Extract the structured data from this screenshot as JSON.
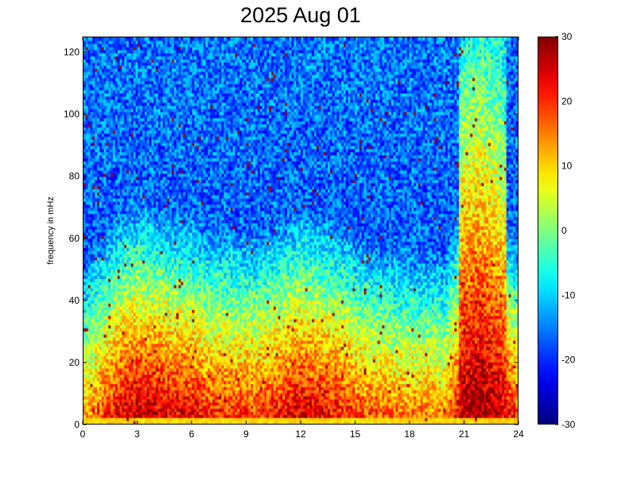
{
  "chart_data": {
    "type": "heatmap",
    "title": "2025 Aug 01",
    "ylabel": "frequency in mHz",
    "xlabel": "",
    "xlim": [
      0,
      24
    ],
    "ylim": [
      0,
      125
    ],
    "x_ticks": [
      "0",
      "3",
      "6",
      "9",
      "12",
      "15",
      "18",
      "21",
      "24"
    ],
    "y_ticks": [
      "0",
      "20",
      "40",
      "60",
      "80",
      "100",
      "120"
    ],
    "colorbar": {
      "colormap": "jet",
      "range": [
        -30,
        30
      ],
      "ticks": [
        "30",
        "20",
        "10",
        "0",
        "-10",
        "-20",
        "-30"
      ]
    },
    "description_values": {
      "hour_intensity_profile": [
        {
          "hour": 0,
          "low_freq_level": 14
        },
        {
          "hour": 1,
          "low_freq_level": 20
        },
        {
          "hour": 2,
          "low_freq_level": 26
        },
        {
          "hour": 3,
          "low_freq_level": 28
        },
        {
          "hour": 4,
          "low_freq_level": 27
        },
        {
          "hour": 5,
          "low_freq_level": 26
        },
        {
          "hour": 6,
          "low_freq_level": 25
        },
        {
          "hour": 7,
          "low_freq_level": 22
        },
        {
          "hour": 8,
          "low_freq_level": 22
        },
        {
          "hour": 9,
          "low_freq_level": 21
        },
        {
          "hour": 10,
          "low_freq_level": 22
        },
        {
          "hour": 11,
          "low_freq_level": 24
        },
        {
          "hour": 12,
          "low_freq_level": 27
        },
        {
          "hour": 13,
          "low_freq_level": 25
        },
        {
          "hour": 14,
          "low_freq_level": 24
        },
        {
          "hour": 15,
          "low_freq_level": 21
        },
        {
          "hour": 16,
          "low_freq_level": 19
        },
        {
          "hour": 17,
          "low_freq_level": 18
        },
        {
          "hour": 18,
          "low_freq_level": 17
        },
        {
          "hour": 19,
          "low_freq_level": 17
        },
        {
          "hour": 20,
          "low_freq_level": 16
        },
        {
          "hour": 21,
          "low_freq_level": 29
        },
        {
          "hour": 22,
          "low_freq_level": 30
        },
        {
          "hour": 23,
          "low_freq_level": 27
        },
        {
          "hour": 24,
          "low_freq_level": 20
        }
      ]
    }
  }
}
